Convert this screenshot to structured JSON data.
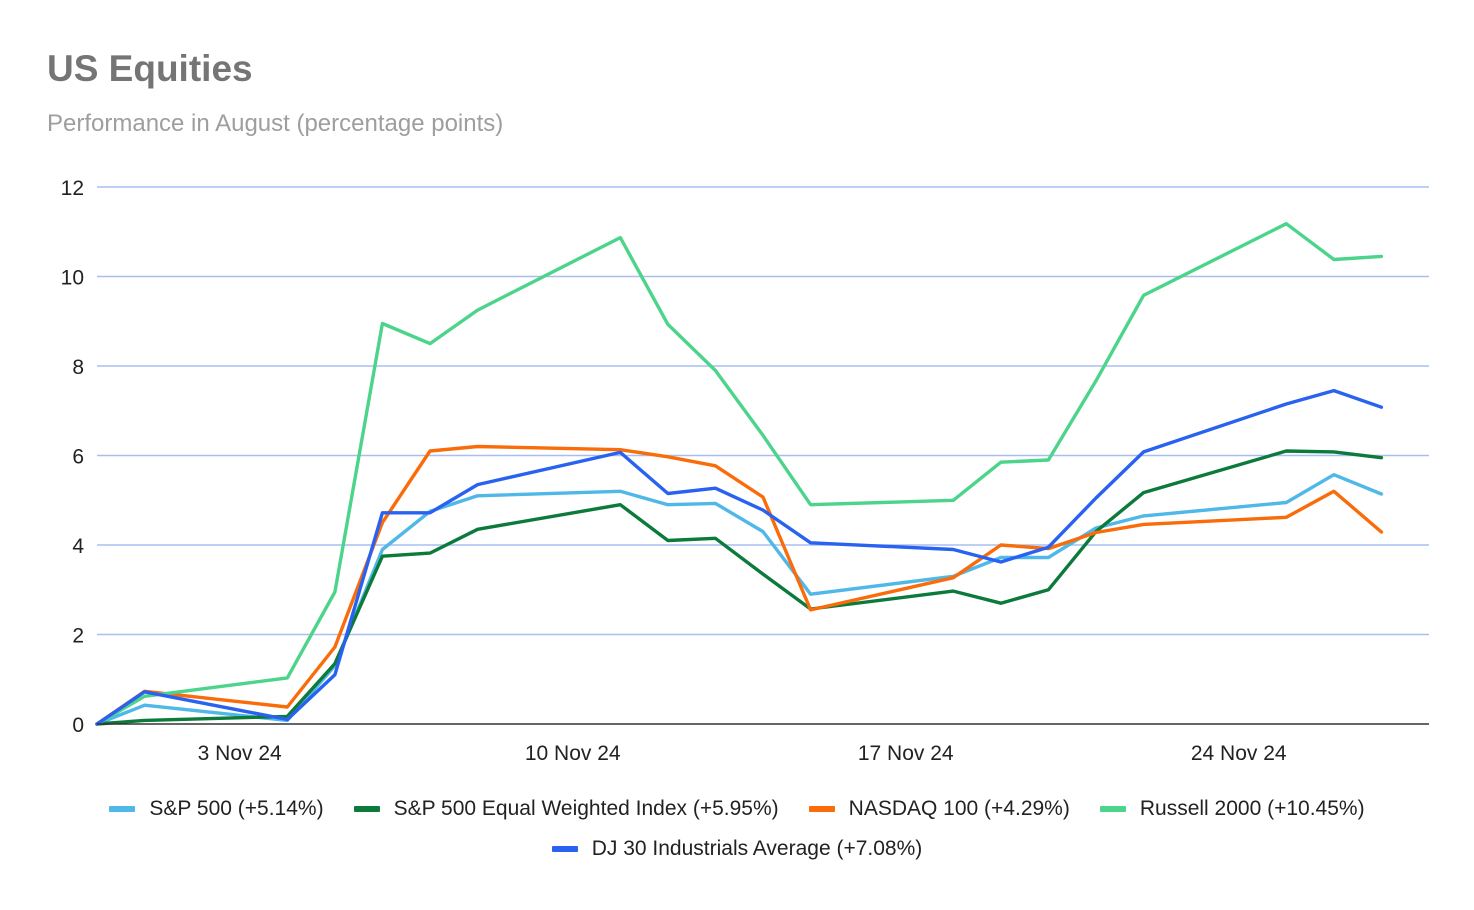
{
  "chart_data": {
    "type": "line",
    "title": "US Equities",
    "subtitle": "Performance in August (percentage points)",
    "xlabel": "",
    "ylabel": "",
    "ylim": [
      0,
      12
    ],
    "yticks": [
      0,
      2,
      4,
      6,
      8,
      10,
      12
    ],
    "xlim": [
      "2024-10-31",
      "2024-11-28"
    ],
    "xticks": [
      {
        "date": "2024-11-03",
        "label": "3 Nov 24"
      },
      {
        "date": "2024-11-10",
        "label": "10 Nov 24"
      },
      {
        "date": "2024-11-17",
        "label": "17 Nov 24"
      },
      {
        "date": "2024-11-24",
        "label": "24 Nov 24"
      }
    ],
    "grid": "horizontal",
    "legend_position": "bottom",
    "x": [
      "2024-10-31",
      "2024-11-01",
      "2024-11-04",
      "2024-11-05",
      "2024-11-06",
      "2024-11-07",
      "2024-11-08",
      "2024-11-11",
      "2024-11-12",
      "2024-11-13",
      "2024-11-14",
      "2024-11-15",
      "2024-11-18",
      "2024-11-19",
      "2024-11-20",
      "2024-11-21",
      "2024-11-22",
      "2024-11-25",
      "2024-11-26",
      "2024-11-27"
    ],
    "series": [
      {
        "name": "S&P 500 (+5.14%)",
        "color": "#4fb8e8",
        "values": [
          0.0,
          0.42,
          0.08,
          1.3,
          3.9,
          4.75,
          5.1,
          5.2,
          4.9,
          4.93,
          4.3,
          2.9,
          3.3,
          3.72,
          3.72,
          4.38,
          4.65,
          4.95,
          5.57,
          5.14
        ]
      },
      {
        "name": "S&P 500 Equal Weighted Index (+5.95%)",
        "color": "#0b7a3a",
        "values": [
          0.0,
          0.08,
          0.17,
          1.35,
          3.75,
          3.82,
          4.35,
          4.9,
          4.1,
          4.15,
          3.35,
          2.57,
          2.97,
          2.7,
          3.0,
          4.3,
          5.17,
          6.1,
          6.08,
          5.95
        ]
      },
      {
        "name": "NASDAQ 100 (+4.29%)",
        "color": "#fa6b0a",
        "values": [
          0.0,
          0.73,
          0.38,
          1.72,
          4.5,
          6.1,
          6.2,
          6.13,
          5.97,
          5.77,
          5.07,
          2.55,
          3.27,
          4.0,
          3.92,
          4.28,
          4.46,
          4.62,
          5.2,
          4.29
        ]
      },
      {
        "name": "Russell 2000 (+10.45%)",
        "color": "#4cd48a",
        "values": [
          0.0,
          0.62,
          1.03,
          2.95,
          8.95,
          8.5,
          9.25,
          10.87,
          8.93,
          7.9,
          6.45,
          4.9,
          5.0,
          5.85,
          5.9,
          7.67,
          9.58,
          11.18,
          10.38,
          10.45
        ]
      },
      {
        "name": "DJ 30 Industrials Average (+7.08%)",
        "color": "#2962f0",
        "values": [
          0.0,
          0.72,
          0.1,
          1.1,
          4.72,
          4.72,
          5.35,
          6.07,
          5.15,
          5.27,
          4.78,
          4.05,
          3.9,
          3.62,
          3.95,
          5.05,
          6.08,
          7.15,
          7.45,
          7.08
        ]
      }
    ]
  }
}
